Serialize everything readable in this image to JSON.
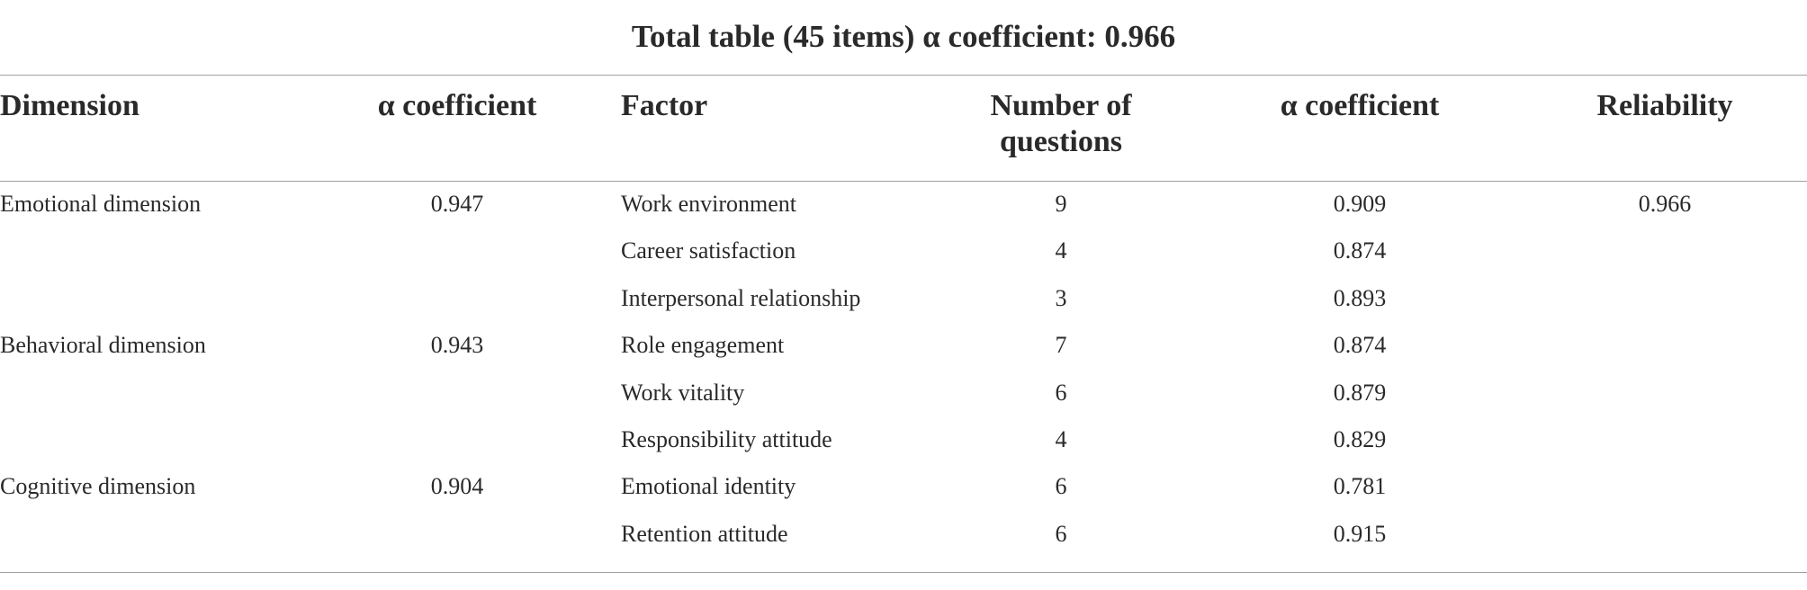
{
  "table": {
    "title": "Total table (45 items) α coefficient: 0.966",
    "header": [
      "Dimension",
      "α coefficient",
      "Factor",
      "Number of questions",
      "α coefficient",
      "Reliability"
    ],
    "rows": [
      [
        "Emotional dimension",
        "0.947",
        "Work environment",
        "9",
        "0.909",
        "0.966"
      ],
      [
        null,
        null,
        "Career satisfaction",
        "4",
        "0.874",
        null
      ],
      [
        null,
        null,
        "Interpersonal relationship",
        "3",
        "0.893",
        null
      ],
      [
        "Behavioral dimension",
        "0.943",
        "Role engagement",
        "7",
        "0.874",
        null
      ],
      [
        null,
        null,
        "Work vitality",
        "6",
        "0.879",
        null
      ],
      [
        null,
        null,
        "Responsibility attitude",
        "4",
        "0.829",
        null
      ],
      [
        "Cognitive dimension",
        "0.904",
        "Emotional identity",
        "6",
        "0.781",
        null
      ],
      [
        null,
        null,
        "Retention attitude",
        "6",
        "0.915",
        null
      ]
    ]
  }
}
